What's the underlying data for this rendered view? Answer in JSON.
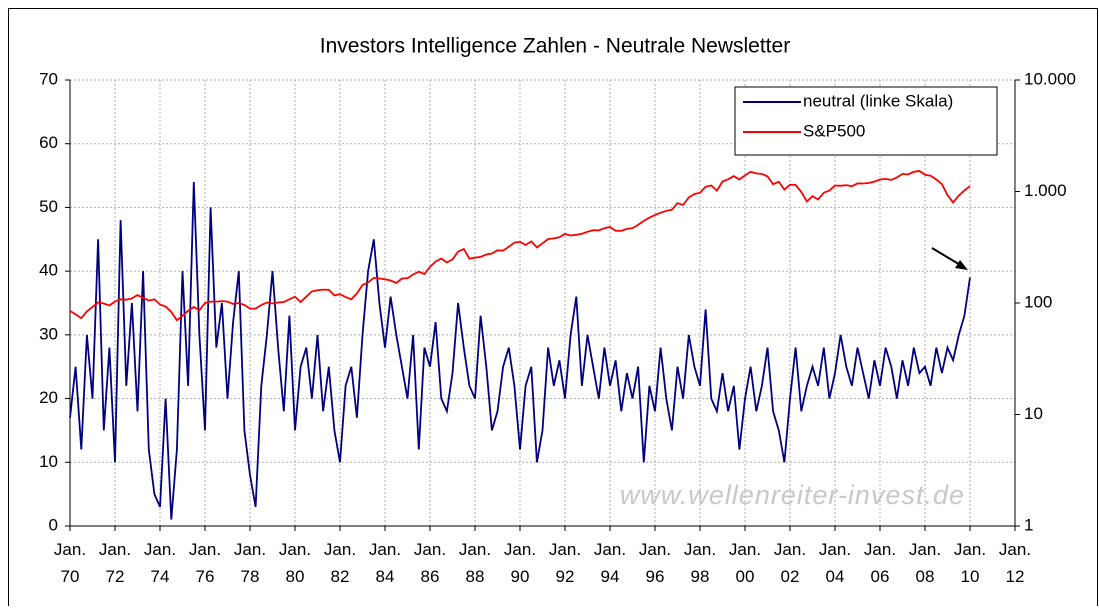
{
  "chart_data": {
    "type": "line",
    "title": "Investors Intelligence Zahlen - Neutrale Newsletter",
    "watermark": "www.wellenreiter-invest.de",
    "x": [
      "1970-01",
      "1970-04",
      "1970-07",
      "1970-10",
      "1971-01",
      "1971-04",
      "1971-07",
      "1971-10",
      "1972-01",
      "1972-04",
      "1972-07",
      "1972-10",
      "1973-01",
      "1973-04",
      "1973-07",
      "1973-10",
      "1974-01",
      "1974-04",
      "1974-07",
      "1974-10",
      "1975-01",
      "1975-04",
      "1975-07",
      "1975-10",
      "1976-01",
      "1976-04",
      "1976-07",
      "1976-10",
      "1977-01",
      "1977-04",
      "1977-07",
      "1977-10",
      "1978-01",
      "1978-04",
      "1978-07",
      "1978-10",
      "1979-01",
      "1979-04",
      "1979-07",
      "1979-10",
      "1980-01",
      "1980-04",
      "1980-07",
      "1980-10",
      "1981-01",
      "1981-04",
      "1981-07",
      "1981-10",
      "1982-01",
      "1982-04",
      "1982-07",
      "1982-10",
      "1983-01",
      "1983-04",
      "1983-07",
      "1983-10",
      "1984-01",
      "1984-04",
      "1984-07",
      "1984-10",
      "1985-01",
      "1985-04",
      "1985-07",
      "1985-10",
      "1986-01",
      "1986-04",
      "1986-07",
      "1986-10",
      "1987-01",
      "1987-04",
      "1987-07",
      "1987-10",
      "1988-01",
      "1988-04",
      "1988-07",
      "1988-10",
      "1989-01",
      "1989-04",
      "1989-07",
      "1989-10",
      "1990-01",
      "1990-04",
      "1990-07",
      "1990-10",
      "1991-01",
      "1991-04",
      "1991-07",
      "1991-10",
      "1992-01",
      "1992-04",
      "1992-07",
      "1992-10",
      "1993-01",
      "1993-04",
      "1993-07",
      "1993-10",
      "1994-01",
      "1994-04",
      "1994-07",
      "1994-10",
      "1995-01",
      "1995-04",
      "1995-07",
      "1995-10",
      "1996-01",
      "1996-04",
      "1996-07",
      "1996-10",
      "1997-01",
      "1997-04",
      "1997-07",
      "1997-10",
      "1998-01",
      "1998-04",
      "1998-07",
      "1998-10",
      "1999-01",
      "1999-04",
      "1999-07",
      "1999-10",
      "2000-01",
      "2000-04",
      "2000-07",
      "2000-10",
      "2001-01",
      "2001-04",
      "2001-07",
      "2001-10",
      "2002-01",
      "2002-04",
      "2002-07",
      "2002-10",
      "2003-01",
      "2003-04",
      "2003-07",
      "2003-10",
      "2004-01",
      "2004-04",
      "2004-07",
      "2004-10",
      "2005-01",
      "2005-04",
      "2005-07",
      "2005-10",
      "2006-01",
      "2006-04",
      "2006-07",
      "2006-10",
      "2007-01",
      "2007-04",
      "2007-07",
      "2007-10",
      "2008-01",
      "2008-04",
      "2008-07",
      "2008-10",
      "2009-01",
      "2009-04",
      "2009-07",
      "2009-10",
      "2010-01"
    ],
    "series": [
      {
        "name": "neutral (linke Skala)",
        "color": "#000080",
        "values": [
          17,
          25,
          12,
          30,
          20,
          45,
          15,
          28,
          10,
          48,
          22,
          35,
          18,
          40,
          12,
          5,
          3,
          20,
          1,
          12,
          40,
          22,
          54,
          30,
          15,
          50,
          28,
          35,
          20,
          32,
          40,
          15,
          8,
          3,
          22,
          30,
          40,
          28,
          18,
          33,
          15,
          25,
          28,
          20,
          30,
          18,
          25,
          15,
          10,
          22,
          25,
          17,
          30,
          40,
          45,
          35,
          28,
          36,
          30,
          25,
          20,
          30,
          12,
          28,
          25,
          32,
          20,
          18,
          24,
          35,
          28,
          22,
          20,
          33,
          25,
          15,
          18,
          25,
          28,
          22,
          12,
          22,
          25,
          10,
          15,
          28,
          22,
          26,
          20,
          30,
          36,
          22,
          30,
          25,
          20,
          28,
          22,
          26,
          18,
          24,
          20,
          25,
          10,
          22,
          18,
          28,
          20,
          15,
          25,
          20,
          30,
          25,
          22,
          34,
          20,
          18,
          24,
          18,
          22,
          12,
          20,
          25,
          18,
          22,
          28,
          18,
          15,
          10,
          20,
          28,
          18,
          22,
          25,
          22,
          28,
          20,
          24,
          30,
          25,
          22,
          28,
          24,
          20,
          26,
          22,
          28,
          25,
          20,
          26,
          22,
          28,
          24,
          25,
          22,
          28,
          24,
          28,
          26,
          30,
          33,
          39
        ]
      },
      {
        "name": "S&P500",
        "color": "#ff0000",
        "axis": "y2",
        "values": [
          85,
          79,
          73,
          84,
          92,
          101,
          99,
          95,
          103,
          108,
          107,
          110,
          118,
          111,
          105,
          108,
          97,
          93,
          83,
          70,
          77,
          85,
          92,
          86,
          100,
          103,
          103,
          104,
          103,
          98,
          100,
          96,
          89,
          89,
          96,
          101,
          99,
          101,
          102,
          108,
          114,
          102,
          114,
          127,
          130,
          132,
          131,
          117,
          120,
          113,
          108,
          122,
          145,
          153,
          168,
          166,
          163,
          159,
          151,
          166,
          167,
          180,
          191,
          182,
          211,
          235,
          250,
          231,
          246,
          289,
          305,
          250,
          255,
          259,
          272,
          278,
          297,
          295,
          319,
          348,
          353,
          331,
          357,
          315,
          343,
          375,
          380,
          388,
          417,
          403,
          409,
          418,
          435,
          450,
          448,
          468,
          480,
          445,
          444,
          462,
          470,
          502,
          545,
          582,
          616,
          645,
          670,
          687,
          786,
          757,
          885,
          947,
          975,
          1101,
          1133,
          1017,
          1229,
          1286,
          1373,
          1282,
          1394,
          1499,
          1454,
          1436,
          1366,
          1160,
          1224,
          1040,
          1148,
          1147,
          989,
          815,
          909,
          848,
          975,
          1018,
          1132,
          1126,
          1141,
          1114,
          1181,
          1180,
          1191,
          1228,
          1280,
          1294,
          1270,
          1335,
          1438,
          1421,
          1503,
          1527,
          1411,
          1385,
          1280,
          1166,
          931,
          797,
          919,
          1020,
          1115
        ]
      }
    ],
    "xlim": [
      "1970-01",
      "2012-01"
    ],
    "xticks": [
      {
        "value": "1970-01",
        "label": "Jan. 70"
      },
      {
        "value": "1972-01",
        "label": "Jan. 72"
      },
      {
        "value": "1974-01",
        "label": "Jan. 74"
      },
      {
        "value": "1976-01",
        "label": "Jan. 76"
      },
      {
        "value": "1978-01",
        "label": "Jan. 78"
      },
      {
        "value": "1980-01",
        "label": "Jan. 80"
      },
      {
        "value": "1982-01",
        "label": "Jan. 82"
      },
      {
        "value": "1984-01",
        "label": "Jan. 84"
      },
      {
        "value": "1986-01",
        "label": "Jan. 86"
      },
      {
        "value": "1988-01",
        "label": "Jan. 88"
      },
      {
        "value": "1990-01",
        "label": "Jan. 90"
      },
      {
        "value": "1992-01",
        "label": "Jan. 92"
      },
      {
        "value": "1994-01",
        "label": "Jan. 94"
      },
      {
        "value": "1996-01",
        "label": "Jan. 96"
      },
      {
        "value": "1998-01",
        "label": "Jan. 98"
      },
      {
        "value": "2000-01",
        "label": "Jan. 00"
      },
      {
        "value": "2002-01",
        "label": "Jan. 02"
      },
      {
        "value": "2004-01",
        "label": "Jan. 04"
      },
      {
        "value": "2006-01",
        "label": "Jan. 06"
      },
      {
        "value": "2008-01",
        "label": "Jan. 08"
      },
      {
        "value": "2010-01",
        "label": "Jan. 10"
      },
      {
        "value": "2012-01",
        "label": "Jan. 12"
      }
    ],
    "ylim": [
      0,
      70
    ],
    "yticks": [
      0,
      10,
      20,
      30,
      40,
      50,
      60,
      70
    ],
    "y2lim": [
      1,
      10000
    ],
    "y2log": true,
    "y2ticks": [
      1,
      10,
      100,
      {
        "value": 1000,
        "label": "1.000"
      },
      {
        "value": 10000,
        "label": "10.000"
      }
    ],
    "grid": true,
    "legend": "top-right"
  }
}
